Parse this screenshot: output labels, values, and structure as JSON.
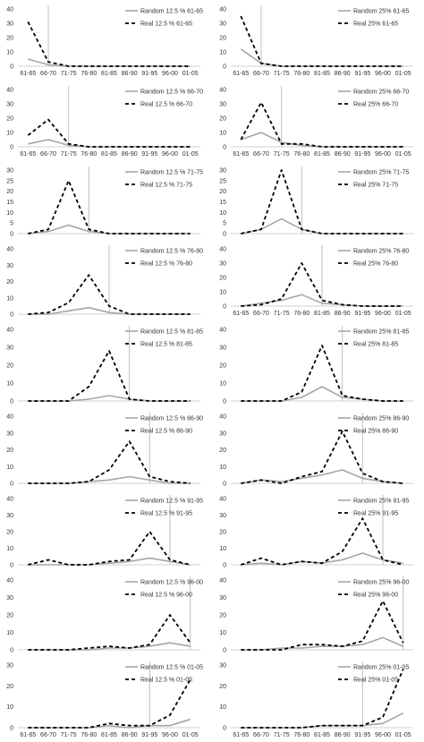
{
  "style": {
    "random_color": "#a6a6a6",
    "real_color": "#000000",
    "marker_color": "#bfbfbf",
    "axis_color": "#d0d0d0",
    "text_color": "#333333"
  },
  "chart_data": [
    {
      "type": "line",
      "column": "12.5%",
      "categories": [
        "61-65",
        "66-70",
        "71-75",
        "76-80",
        "81-85",
        "86-90",
        "91-95",
        "96-00",
        "01-05"
      ],
      "ylim": [
        0,
        40
      ],
      "yticks": [
        0,
        10,
        20,
        30,
        40
      ],
      "x_tick_labels_shown": true,
      "marker_after": "66-70",
      "series": [
        {
          "name": "Random 12.5 % 61-65",
          "style": "solid",
          "values": [
            5,
            1,
            0,
            0,
            0,
            0,
            0,
            0,
            0
          ]
        },
        {
          "name": "Real 12.5 % 61-65",
          "style": "dashed",
          "values": [
            31,
            3,
            0,
            0,
            0,
            0,
            0,
            0,
            0
          ]
        }
      ]
    },
    {
      "type": "line",
      "column": "25%",
      "categories": [
        "61-65",
        "66-70",
        "71-75",
        "76-80",
        "81-85",
        "86-90",
        "91-95",
        "96-00",
        "01-05"
      ],
      "ylim": [
        0,
        40
      ],
      "yticks": [
        0,
        10,
        20,
        30,
        40
      ],
      "x_tick_labels_shown": true,
      "marker_after": "66-70",
      "series": [
        {
          "name": "Random 25% 61-65",
          "style": "solid",
          "values": [
            12,
            2,
            0,
            0,
            0,
            0,
            0,
            0,
            0
          ]
        },
        {
          "name": "Real 25% 61-65",
          "style": "dashed",
          "values": [
            35,
            2,
            0,
            0,
            0,
            0,
            0,
            0,
            0
          ]
        }
      ]
    },
    {
      "type": "line",
      "column": "12.5%",
      "categories": [
        "61-65",
        "66-70",
        "71-75",
        "76-80",
        "81-85",
        "86-90",
        "91-95",
        "96-00",
        "01-05"
      ],
      "ylim": [
        0,
        40
      ],
      "yticks": [
        0,
        10,
        20,
        30,
        40
      ],
      "x_tick_labels_shown": true,
      "marker_after": "71-75",
      "series": [
        {
          "name": "Random 12.5 % 66-70",
          "style": "solid",
          "values": [
            2,
            5,
            1,
            0,
            0,
            0,
            0,
            0,
            0
          ]
        },
        {
          "name": "Real 12.5 % 66-70",
          "style": "dashed",
          "values": [
            8,
            19,
            2,
            0,
            0,
            0,
            0,
            0,
            0
          ]
        }
      ]
    },
    {
      "type": "line",
      "column": "25%",
      "categories": [
        "61-65",
        "66-70",
        "71-75",
        "76-80",
        "81-85",
        "86-90",
        "91-95",
        "96-00",
        "01-05"
      ],
      "ylim": [
        0,
        40
      ],
      "yticks": [
        0,
        10,
        20,
        30,
        40
      ],
      "x_tick_labels_shown": true,
      "marker_after": "71-75",
      "series": [
        {
          "name": "Random 25% 66-70",
          "style": "solid",
          "values": [
            5,
            10,
            3,
            1,
            0,
            0,
            0,
            0,
            0
          ]
        },
        {
          "name": "Real 25% 66-70",
          "style": "dashed",
          "values": [
            5,
            31,
            2,
            2,
            0,
            0,
            0,
            0,
            0
          ]
        }
      ]
    },
    {
      "type": "line",
      "column": "12.5%",
      "categories": [
        "61-65",
        "66-70",
        "71-75",
        "76-80",
        "81-85",
        "86-90",
        "91-95",
        "96-00",
        "01-05"
      ],
      "ylim": [
        0,
        30
      ],
      "yticks": [
        0,
        5,
        10,
        15,
        20,
        25,
        30
      ],
      "x_tick_labels_shown": false,
      "marker_after": "76-80",
      "series": [
        {
          "name": "Random 12.5 % 71-75",
          "style": "solid",
          "values": [
            0,
            1,
            4,
            1,
            0,
            0,
            0,
            0,
            0
          ]
        },
        {
          "name": "Real 12.5 % 71-75",
          "style": "dashed",
          "values": [
            0,
            2,
            25,
            2,
            0,
            0,
            0,
            0,
            0
          ]
        }
      ]
    },
    {
      "type": "line",
      "column": "25%",
      "categories": [
        "61-65",
        "66-70",
        "71-75",
        "76-80",
        "81-85",
        "86-90",
        "91-95",
        "96-00",
        "01-05"
      ],
      "ylim": [
        0,
        30
      ],
      "yticks": [
        0,
        5,
        10,
        15,
        20,
        25,
        30
      ],
      "x_tick_labels_shown": false,
      "marker_after": "76-80",
      "series": [
        {
          "name": "Random 25% 71-75",
          "style": "solid",
          "values": [
            0,
            2,
            7,
            2,
            0,
            0,
            0,
            0,
            0
          ]
        },
        {
          "name": "Real 25% 71-75",
          "style": "dashed",
          "values": [
            0,
            2,
            30,
            2,
            0,
            0,
            0,
            0,
            0
          ]
        }
      ]
    },
    {
      "type": "line",
      "column": "12.5%",
      "categories": [
        "61-65",
        "66-70",
        "71-75",
        "76-80",
        "81-85",
        "86-90",
        "91-95",
        "96-00",
        "01-05"
      ],
      "ylim": [
        0,
        40
      ],
      "yticks": [
        0,
        10,
        20,
        30,
        40
      ],
      "x_tick_labels_shown": false,
      "marker_after": "81-85",
      "series": [
        {
          "name": "Random 12.5 % 76-80",
          "style": "solid",
          "values": [
            0,
            0,
            2,
            4,
            1,
            0,
            0,
            0,
            0
          ]
        },
        {
          "name": "Real 12.5 % 76-80",
          "style": "dashed",
          "values": [
            0,
            1,
            7,
            24,
            5,
            0,
            0,
            0,
            0
          ]
        }
      ]
    },
    {
      "type": "line",
      "column": "25%",
      "categories": [
        "61-65",
        "66-70",
        "71-75",
        "76-80",
        "81-85",
        "86-90",
        "91-95",
        "96-00",
        "01-05"
      ],
      "ylim": [
        0,
        40
      ],
      "yticks": [
        0,
        10,
        20,
        30,
        40
      ],
      "x_tick_labels_shown": true,
      "marker_after": "81-85",
      "series": [
        {
          "name": "Random 25% 76-80",
          "style": "solid",
          "values": [
            0,
            2,
            4,
            8,
            2,
            1,
            0,
            0,
            0
          ]
        },
        {
          "name": "Real 25% 76-80",
          "style": "dashed",
          "values": [
            0,
            1,
            5,
            30,
            4,
            1,
            0,
            0,
            0
          ]
        }
      ]
    },
    {
      "type": "line",
      "column": "12.5%",
      "categories": [
        "61-65",
        "66-70",
        "71-75",
        "76-80",
        "81-85",
        "86-90",
        "91-95",
        "96-00",
        "01-05"
      ],
      "ylim": [
        0,
        40
      ],
      "yticks": [
        0,
        10,
        20,
        30,
        40
      ],
      "x_tick_labels_shown": false,
      "marker_after": "86-90",
      "series": [
        {
          "name": "Random 12.5 % 81-85",
          "style": "solid",
          "values": [
            0,
            0,
            0,
            1,
            3,
            1,
            0,
            0,
            0
          ]
        },
        {
          "name": "Real 12.5 % 81-85",
          "style": "dashed",
          "values": [
            0,
            0,
            0,
            8,
            28,
            1,
            0,
            0,
            0
          ]
        }
      ]
    },
    {
      "type": "line",
      "column": "25%",
      "categories": [
        "61-65",
        "66-70",
        "71-75",
        "76-80",
        "81-85",
        "86-90",
        "91-95",
        "96-00",
        "01-05"
      ],
      "ylim": [
        0,
        40
      ],
      "yticks": [
        0,
        10,
        20,
        30,
        40
      ],
      "x_tick_labels_shown": false,
      "marker_after": "86-90",
      "series": [
        {
          "name": "Random 25% 81-85",
          "style": "solid",
          "values": [
            0,
            0,
            0,
            2,
            8,
            2,
            1,
            0,
            0
          ]
        },
        {
          "name": "Real 25% 81-85",
          "style": "dashed",
          "values": [
            0,
            0,
            0,
            5,
            31,
            3,
            1,
            0,
            0
          ]
        }
      ]
    },
    {
      "type": "line",
      "column": "12.5%",
      "categories": [
        "61-65",
        "66-70",
        "71-75",
        "76-80",
        "81-85",
        "86-90",
        "91-95",
        "96-00",
        "01-05"
      ],
      "ylim": [
        0,
        40
      ],
      "yticks": [
        0,
        10,
        20,
        30,
        40
      ],
      "x_tick_labels_shown": false,
      "marker_after": "91-95",
      "series": [
        {
          "name": "Random 12.5 % 86-90",
          "style": "solid",
          "values": [
            0,
            0,
            0,
            1,
            2,
            4,
            2,
            0,
            0
          ]
        },
        {
          "name": "Real 12.5 % 86-90",
          "style": "dashed",
          "values": [
            0,
            0,
            0,
            1,
            8,
            25,
            4,
            1,
            0
          ]
        }
      ]
    },
    {
      "type": "line",
      "column": "25%",
      "categories": [
        "61-65",
        "66-70",
        "71-75",
        "76-80",
        "81-85",
        "86-90",
        "91-95",
        "96-00",
        "01-05"
      ],
      "ylim": [
        0,
        40
      ],
      "yticks": [
        0,
        10,
        20,
        30,
        40
      ],
      "x_tick_labels_shown": false,
      "marker_after": "91-95",
      "series": [
        {
          "name": "Random 25% 86-90",
          "style": "solid",
          "values": [
            0,
            2,
            1,
            3,
            5,
            8,
            3,
            1,
            0
          ]
        },
        {
          "name": "Real 25% 86-90",
          "style": "dashed",
          "values": [
            0,
            2,
            0,
            4,
            7,
            31,
            6,
            1,
            0
          ]
        }
      ]
    },
    {
      "type": "line",
      "column": "12.5%",
      "categories": [
        "61-65",
        "66-70",
        "71-75",
        "76-80",
        "81-85",
        "86-90",
        "91-95",
        "96-00",
        "01-05"
      ],
      "ylim": [
        0,
        40
      ],
      "yticks": [
        0,
        10,
        20,
        30,
        40
      ],
      "x_tick_labels_shown": false,
      "marker_after": "96-00",
      "series": [
        {
          "name": "Random 12.5 % 91-95",
          "style": "solid",
          "values": [
            0,
            0,
            0,
            0,
            1,
            2,
            4,
            2,
            0
          ]
        },
        {
          "name": "Real 12.5 % 91-95",
          "style": "dashed",
          "values": [
            0,
            3,
            0,
            0,
            2,
            3,
            20,
            3,
            0
          ]
        }
      ]
    },
    {
      "type": "line",
      "column": "25%",
      "categories": [
        "61-65",
        "66-70",
        "71-75",
        "76-80",
        "81-85",
        "86-90",
        "91-95",
        "96-00",
        "01-05"
      ],
      "ylim": [
        0,
        40
      ],
      "yticks": [
        0,
        10,
        20,
        30,
        40
      ],
      "x_tick_labels_shown": false,
      "marker_after": "96-00",
      "series": [
        {
          "name": "Random 25% 91-95",
          "style": "solid",
          "values": [
            0,
            1,
            0,
            2,
            1,
            3,
            7,
            3,
            1
          ]
        },
        {
          "name": "Real 25% 91-95",
          "style": "dashed",
          "values": [
            0,
            4,
            0,
            2,
            1,
            8,
            28,
            3,
            0
          ]
        }
      ]
    },
    {
      "type": "line",
      "column": "12.5%",
      "categories": [
        "61-65",
        "66-70",
        "71-75",
        "76-80",
        "81-85",
        "86-90",
        "91-95",
        "96-00",
        "01-05"
      ],
      "ylim": [
        0,
        40
      ],
      "yticks": [
        0,
        10,
        20,
        30,
        40
      ],
      "x_tick_labels_shown": false,
      "marker_after": "01-05",
      "series": [
        {
          "name": "Random 12.5 % 96-00",
          "style": "solid",
          "values": [
            0,
            0,
            0,
            0,
            1,
            1,
            2,
            4,
            2
          ]
        },
        {
          "name": "Real 12.5 % 96-00",
          "style": "dashed",
          "values": [
            0,
            0,
            0,
            1,
            2,
            1,
            3,
            20,
            4
          ]
        }
      ]
    },
    {
      "type": "line",
      "column": "25%",
      "categories": [
        "61-65",
        "66-70",
        "71-75",
        "76-80",
        "81-85",
        "86-90",
        "91-95",
        "96-00",
        "01-05"
      ],
      "ylim": [
        0,
        40
      ],
      "yticks": [
        0,
        10,
        20,
        30,
        40
      ],
      "x_tick_labels_shown": false,
      "marker_after": "01-05",
      "series": [
        {
          "name": "Random 25% 96-00",
          "style": "solid",
          "values": [
            0,
            0,
            1,
            1,
            2,
            2,
            3,
            7,
            2
          ]
        },
        {
          "name": "Real 25% 96-00",
          "style": "dashed",
          "values": [
            0,
            0,
            0,
            3,
            3,
            2,
            5,
            28,
            4
          ]
        }
      ]
    },
    {
      "type": "line",
      "column": "12.5%",
      "categories": [
        "61-65",
        "66-70",
        "71-75",
        "76-80",
        "81-85",
        "86-90",
        "91-95",
        "96-00",
        "01-05"
      ],
      "ylim": [
        0,
        30
      ],
      "yticks": [
        0,
        10,
        20,
        30
      ],
      "x_tick_labels_shown": true,
      "marker_after": "91-95",
      "series": [
        {
          "name": "Random 12.5 % 01-05",
          "style": "solid",
          "values": [
            0,
            0,
            0,
            0,
            1,
            0,
            1,
            1,
            4
          ]
        },
        {
          "name": "Real 12.5 % 01-05",
          "style": "dashed",
          "values": [
            0,
            0,
            0,
            0,
            2,
            1,
            1,
            6,
            23
          ]
        }
      ]
    },
    {
      "type": "line",
      "column": "25%",
      "categories": [
        "61-65",
        "66-70",
        "71-75",
        "76-80",
        "81-85",
        "86-90",
        "91-95",
        "96-00",
        "01-05"
      ],
      "ylim": [
        0,
        30
      ],
      "yticks": [
        0,
        10,
        20,
        30
      ],
      "x_tick_labels_shown": true,
      "marker_after": "91-95",
      "series": [
        {
          "name": "Random 25% 01-05",
          "style": "solid",
          "values": [
            0,
            0,
            0,
            0,
            1,
            1,
            1,
            2,
            7
          ]
        },
        {
          "name": "Real 25% 01-05",
          "style": "dashed",
          "values": [
            0,
            0,
            0,
            0,
            1,
            1,
            1,
            5,
            28
          ]
        }
      ]
    }
  ]
}
